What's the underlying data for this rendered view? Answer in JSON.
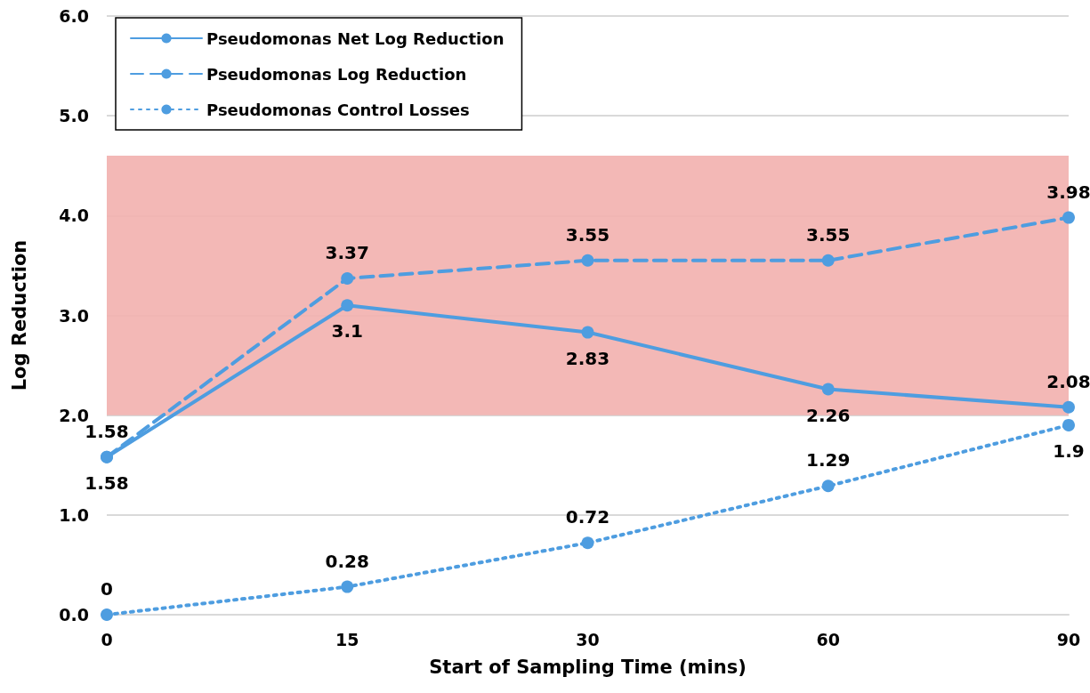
{
  "chart_data": {
    "type": "line",
    "xlabel": "Start of Sampling Time (mins)",
    "ylabel": "Log Reduction",
    "categories": [
      "0",
      "15",
      "30",
      "60",
      "90"
    ],
    "series": [
      {
        "name": "Pseudomonas Net Log Reduction",
        "color": "#4e9de0",
        "line_style": "solid",
        "values": [
          1.58,
          3.1,
          2.83,
          2.26,
          2.08
        ]
      },
      {
        "name": "Pseudomonas Log Reduction",
        "color": "#4e9de0",
        "line_style": "dashed",
        "values": [
          1.58,
          3.37,
          3.55,
          3.55,
          3.98
        ]
      },
      {
        "name": "Pseudomonas Control Losses",
        "color": "#4e9de0",
        "line_style": "dotted",
        "values": [
          0,
          0.28,
          0.72,
          1.29,
          1.9
        ]
      }
    ],
    "ylim": [
      0,
      6
    ],
    "yticks": [
      {
        "value": 0,
        "label": "0.0"
      },
      {
        "value": 1,
        "label": "1.0"
      },
      {
        "value": 2,
        "label": "2.0"
      },
      {
        "value": 3,
        "label": "3.0"
      },
      {
        "value": 4,
        "label": "4.0"
      },
      {
        "value": 5,
        "label": "5.0"
      },
      {
        "value": 6,
        "label": "6.0"
      }
    ],
    "bands": [
      {
        "axis": "y",
        "from": 2,
        "to": 4.6,
        "color": "#f2b0ae"
      }
    ],
    "grid": "y",
    "legend": "top left",
    "marker": "circle",
    "data_labels": true
  }
}
